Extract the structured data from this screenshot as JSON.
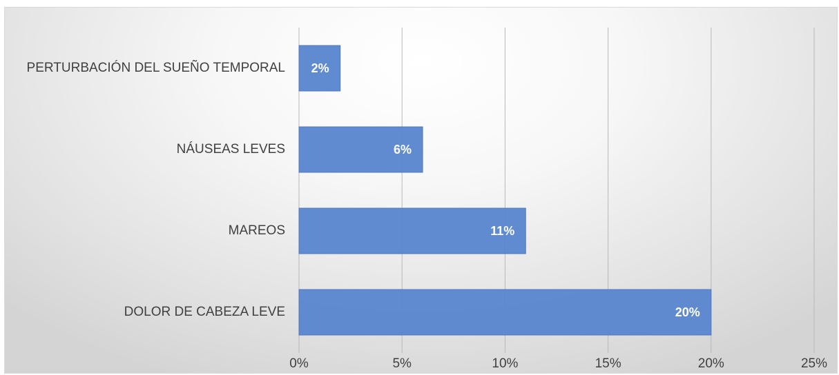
{
  "chart_data": {
    "type": "bar",
    "orientation": "horizontal",
    "categories": [
      "PERTURBACIÓN DEL SUEÑO TEMPORAL",
      "NÁUSEAS LEVES",
      "MAREOS",
      "DOLOR DE CABEZA LEVE"
    ],
    "values": [
      2,
      6,
      11,
      20
    ],
    "data_labels": [
      "2%",
      "6%",
      "11%",
      "20%"
    ],
    "x_ticks": [
      "0%",
      "5%",
      "10%",
      "15%",
      "20%",
      "25%"
    ],
    "xlim": [
      0,
      25
    ],
    "grid": "vertical",
    "title": "",
    "xlabel": "",
    "ylabel": ""
  },
  "colors": {
    "bar": "#5b87cf",
    "bar_border": "#4f78bd",
    "grid": "#b8b8b8",
    "text": "#404040"
  }
}
